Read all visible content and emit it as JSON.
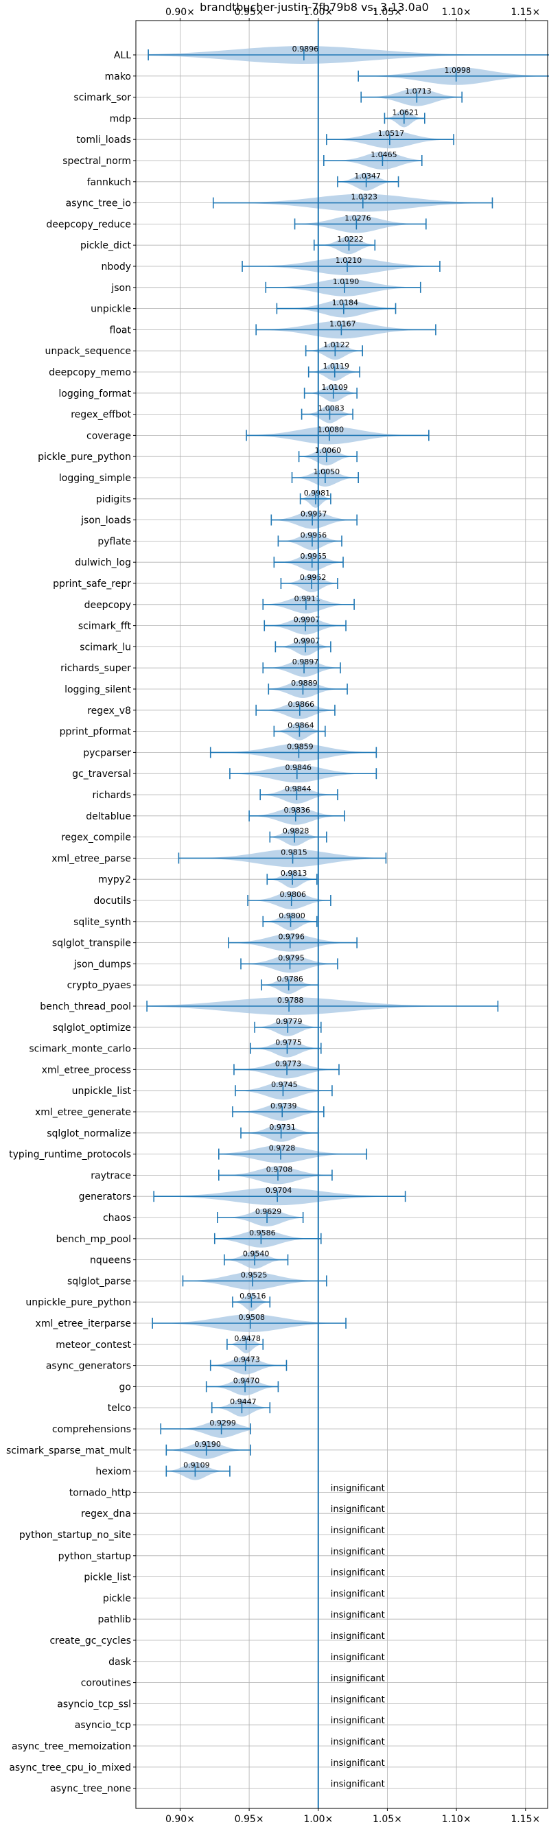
{
  "chart_data": {
    "type": "violin",
    "title": "brandtbucher-justin-7fb79b8 vs. 3.13.0a0",
    "xticks": [
      0.9,
      0.95,
      1.0,
      1.05,
      1.1,
      1.15
    ],
    "xtick_labels": [
      "0.90×",
      "0.95×",
      "1.00×",
      "1.05×",
      "1.10×",
      "1.15×"
    ],
    "xlim": [
      0.868,
      1.166
    ],
    "reference_line": 1.0,
    "grid": true,
    "insignificant_label": "insignificant",
    "benchmarks": [
      {
        "name": "ALL",
        "label": "0.9896",
        "median": 0.9896,
        "min": 0.877,
        "max": 1.173
      },
      {
        "name": "mako",
        "label": "1.0998",
        "median": 1.0998,
        "min": 1.029,
        "max": 1.172
      },
      {
        "name": "scimark_sor",
        "label": "1.0713",
        "median": 1.0713,
        "min": 1.031,
        "max": 1.104
      },
      {
        "name": "mdp",
        "label": "1.0621",
        "median": 1.0621,
        "min": 1.048,
        "max": 1.077
      },
      {
        "name": "tomli_loads",
        "label": "1.0517",
        "median": 1.0517,
        "min": 1.006,
        "max": 1.098
      },
      {
        "name": "spectral_norm",
        "label": "1.0465",
        "median": 1.0465,
        "min": 1.004,
        "max": 1.075
      },
      {
        "name": "fannkuch",
        "label": "1.0347",
        "median": 1.0347,
        "min": 1.014,
        "max": 1.058
      },
      {
        "name": "async_tree_io",
        "label": "1.0323",
        "median": 1.0323,
        "min": 0.924,
        "max": 1.126
      },
      {
        "name": "deepcopy_reduce",
        "label": "1.0276",
        "median": 1.0276,
        "min": 0.983,
        "max": 1.078
      },
      {
        "name": "pickle_dict",
        "label": "1.0222",
        "median": 1.0222,
        "min": 0.997,
        "max": 1.041
      },
      {
        "name": "nbody",
        "label": "1.0210",
        "median": 1.021,
        "min": 0.945,
        "max": 1.088
      },
      {
        "name": "json",
        "label": "1.0190",
        "median": 1.019,
        "min": 0.962,
        "max": 1.074
      },
      {
        "name": "unpickle",
        "label": "1.0184",
        "median": 1.0184,
        "min": 0.97,
        "max": 1.056
      },
      {
        "name": "float",
        "label": "1.0167",
        "median": 1.0167,
        "min": 0.955,
        "max": 1.085
      },
      {
        "name": "unpack_sequence",
        "label": "1.0122",
        "median": 1.0122,
        "min": 0.991,
        "max": 1.032
      },
      {
        "name": "deepcopy_memo",
        "label": "1.0119",
        "median": 1.0119,
        "min": 0.993,
        "max": 1.03
      },
      {
        "name": "logging_format",
        "label": "1.0109",
        "median": 1.0109,
        "min": 0.99,
        "max": 1.028
      },
      {
        "name": "regex_effbot",
        "label": "1.0083",
        "median": 1.0083,
        "min": 0.988,
        "max": 1.025
      },
      {
        "name": "coverage",
        "label": "1.0080",
        "median": 1.008,
        "min": 0.948,
        "max": 1.08
      },
      {
        "name": "pickle_pure_python",
        "label": "1.0060",
        "median": 1.006,
        "min": 0.986,
        "max": 1.028
      },
      {
        "name": "logging_simple",
        "label": "1.0050",
        "median": 1.005,
        "min": 0.981,
        "max": 1.029
      },
      {
        "name": "pidigits",
        "label": "0.9981",
        "median": 0.9981,
        "min": 0.987,
        "max": 1.009
      },
      {
        "name": "json_loads",
        "label": "0.9957",
        "median": 0.9957,
        "min": 0.966,
        "max": 1.028
      },
      {
        "name": "pyflate",
        "label": "0.9956",
        "median": 0.9956,
        "min": 0.971,
        "max": 1.017
      },
      {
        "name": "dulwich_log",
        "label": "0.9955",
        "median": 0.9955,
        "min": 0.968,
        "max": 1.018
      },
      {
        "name": "pprint_safe_repr",
        "label": "0.9952",
        "median": 0.9952,
        "min": 0.973,
        "max": 1.014
      },
      {
        "name": "deepcopy",
        "label": "0.9911",
        "median": 0.9911,
        "min": 0.96,
        "max": 1.026
      },
      {
        "name": "scimark_fft",
        "label": "0.9907",
        "median": 0.9907,
        "min": 0.961,
        "max": 1.02
      },
      {
        "name": "scimark_lu",
        "label": "0.9907",
        "median": 0.9907,
        "min": 0.969,
        "max": 1.009
      },
      {
        "name": "richards_super",
        "label": "0.9897",
        "median": 0.9897,
        "min": 0.96,
        "max": 1.016
      },
      {
        "name": "logging_silent",
        "label": "0.9889",
        "median": 0.9889,
        "min": 0.964,
        "max": 1.021
      },
      {
        "name": "regex_v8",
        "label": "0.9866",
        "median": 0.9866,
        "min": 0.955,
        "max": 1.012
      },
      {
        "name": "pprint_pformat",
        "label": "0.9864",
        "median": 0.9864,
        "min": 0.968,
        "max": 1.005
      },
      {
        "name": "pycparser",
        "label": "0.9859",
        "median": 0.9859,
        "min": 0.922,
        "max": 1.042
      },
      {
        "name": "gc_traversal",
        "label": "0.9846",
        "median": 0.9846,
        "min": 0.936,
        "max": 1.042
      },
      {
        "name": "richards",
        "label": "0.9844",
        "median": 0.9844,
        "min": 0.958,
        "max": 1.014
      },
      {
        "name": "deltablue",
        "label": "0.9836",
        "median": 0.9836,
        "min": 0.95,
        "max": 1.019
      },
      {
        "name": "regex_compile",
        "label": "0.9828",
        "median": 0.9828,
        "min": 0.965,
        "max": 1.006
      },
      {
        "name": "xml_etree_parse",
        "label": "0.9815",
        "median": 0.9815,
        "min": 0.899,
        "max": 1.049
      },
      {
        "name": "mypy2",
        "label": "0.9813",
        "median": 0.9813,
        "min": 0.963,
        "max": 0.999
      },
      {
        "name": "docutils",
        "label": "0.9806",
        "median": 0.9806,
        "min": 0.949,
        "max": 1.009
      },
      {
        "name": "sqlite_synth",
        "label": "0.9800",
        "median": 0.98,
        "min": 0.96,
        "max": 0.999
      },
      {
        "name": "sqlglot_transpile",
        "label": "0.9796",
        "median": 0.9796,
        "min": 0.935,
        "max": 1.028
      },
      {
        "name": "json_dumps",
        "label": "0.9795",
        "median": 0.9795,
        "min": 0.944,
        "max": 1.014
      },
      {
        "name": "crypto_pyaes",
        "label": "0.9786",
        "median": 0.9786,
        "min": 0.959,
        "max": 1.0
      },
      {
        "name": "bench_thread_pool",
        "label": "0.9788",
        "median": 0.9788,
        "min": 0.876,
        "max": 1.13
      },
      {
        "name": "sqlglot_optimize",
        "label": "0.9779",
        "median": 0.9779,
        "min": 0.954,
        "max": 1.002
      },
      {
        "name": "scimark_monte_carlo",
        "label": "0.9775",
        "median": 0.9775,
        "min": 0.951,
        "max": 1.002
      },
      {
        "name": "xml_etree_process",
        "label": "0.9773",
        "median": 0.9773,
        "min": 0.939,
        "max": 1.015
      },
      {
        "name": "unpickle_list",
        "label": "0.9745",
        "median": 0.9745,
        "min": 0.94,
        "max": 1.01
      },
      {
        "name": "xml_etree_generate",
        "label": "0.9739",
        "median": 0.9739,
        "min": 0.938,
        "max": 1.004
      },
      {
        "name": "sqlglot_normalize",
        "label": "0.9731",
        "median": 0.9731,
        "min": 0.944,
        "max": 1.0
      },
      {
        "name": "typing_runtime_protocols",
        "label": "0.9728",
        "median": 0.9728,
        "min": 0.928,
        "max": 1.035
      },
      {
        "name": "raytrace",
        "label": "0.9708",
        "median": 0.9708,
        "min": 0.928,
        "max": 1.01
      },
      {
        "name": "generators",
        "label": "0.9704",
        "median": 0.9704,
        "min": 0.881,
        "max": 1.063
      },
      {
        "name": "chaos",
        "label": "0.9629",
        "median": 0.9629,
        "min": 0.927,
        "max": 0.989
      },
      {
        "name": "bench_mp_pool",
        "label": "0.9586",
        "median": 0.9586,
        "min": 0.925,
        "max": 1.002
      },
      {
        "name": "nqueens",
        "label": "0.9540",
        "median": 0.954,
        "min": 0.932,
        "max": 0.978
      },
      {
        "name": "sqlglot_parse",
        "label": "0.9525",
        "median": 0.9525,
        "min": 0.902,
        "max": 1.006
      },
      {
        "name": "unpickle_pure_python",
        "label": "0.9516",
        "median": 0.9516,
        "min": 0.938,
        "max": 0.965
      },
      {
        "name": "xml_etree_iterparse",
        "label": "0.9508",
        "median": 0.9508,
        "min": 0.88,
        "max": 1.02
      },
      {
        "name": "meteor_contest",
        "label": "0.9478",
        "median": 0.9478,
        "min": 0.934,
        "max": 0.96
      },
      {
        "name": "async_generators",
        "label": "0.9473",
        "median": 0.9473,
        "min": 0.922,
        "max": 0.977
      },
      {
        "name": "go",
        "label": "0.9470",
        "median": 0.947,
        "min": 0.919,
        "max": 0.971
      },
      {
        "name": "telco",
        "label": "0.9447",
        "median": 0.9447,
        "min": 0.923,
        "max": 0.965
      },
      {
        "name": "comprehensions",
        "label": "0.9299",
        "median": 0.9299,
        "min": 0.886,
        "max": 0.951
      },
      {
        "name": "scimark_sparse_mat_mult",
        "label": "0.9190",
        "median": 0.919,
        "min": 0.89,
        "max": 0.951
      },
      {
        "name": "hexiom",
        "label": "0.9109",
        "median": 0.9109,
        "min": 0.89,
        "max": 0.936
      },
      {
        "name": "tornado_http",
        "insignificant": true
      },
      {
        "name": "regex_dna",
        "insignificant": true
      },
      {
        "name": "python_startup_no_site",
        "insignificant": true
      },
      {
        "name": "python_startup",
        "insignificant": true
      },
      {
        "name": "pickle_list",
        "insignificant": true
      },
      {
        "name": "pickle",
        "insignificant": true
      },
      {
        "name": "pathlib",
        "insignificant": true
      },
      {
        "name": "create_gc_cycles",
        "insignificant": true
      },
      {
        "name": "dask",
        "insignificant": true
      },
      {
        "name": "coroutines",
        "insignificant": true
      },
      {
        "name": "asyncio_tcp_ssl",
        "insignificant": true
      },
      {
        "name": "asyncio_tcp",
        "insignificant": true
      },
      {
        "name": "async_tree_memoization",
        "insignificant": true
      },
      {
        "name": "async_tree_cpu_io_mixed",
        "insignificant": true
      },
      {
        "name": "async_tree_none",
        "insignificant": true
      }
    ],
    "colors": {
      "violin_fill": "#a6c5e3",
      "violin_opacity": 0.75,
      "marker": "#1f77b4",
      "grid": "#b0b0b0",
      "axes": "#000000"
    }
  }
}
